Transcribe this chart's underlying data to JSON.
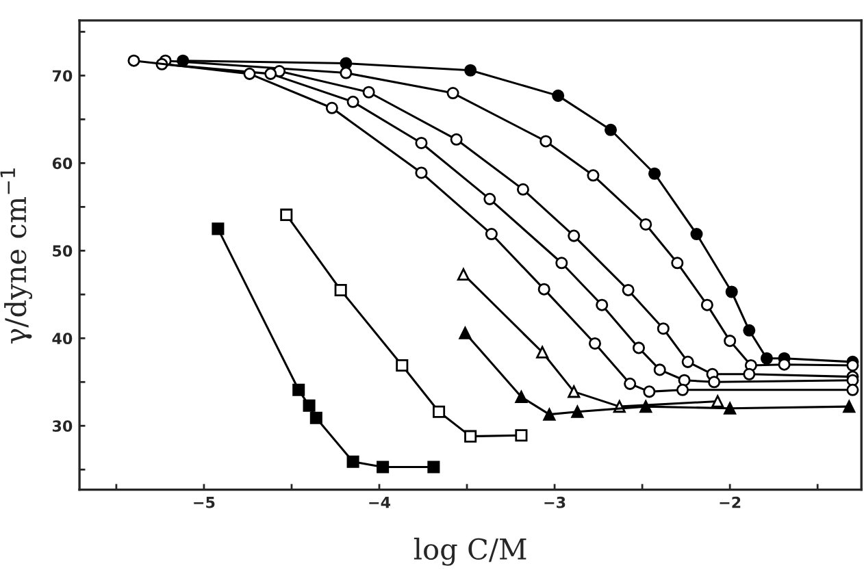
{
  "chart_data": {
    "type": "line",
    "xlabel": "log C/M",
    "ylabel": "γ/dyne cm$^{−1}$",
    "xlim": [
      -5.71,
      -1.25
    ],
    "ylim": [
      22.7,
      76.3
    ],
    "xticks": [
      {
        "value": -5.5,
        "label": null
      },
      {
        "value": -5,
        "label": "−5"
      },
      {
        "value": -4.5,
        "label": null
      },
      {
        "value": -4,
        "label": "−4"
      },
      {
        "value": -3.5,
        "label": null
      },
      {
        "value": -3,
        "label": "−3"
      },
      {
        "value": -2.5,
        "label": null
      },
      {
        "value": -2,
        "label": "−2"
      },
      {
        "value": -1.5,
        "label": null
      }
    ],
    "yticks": [
      {
        "value": 25,
        "label": null
      },
      30,
      {
        "value": 35,
        "label": null
      },
      40,
      {
        "value": 45,
        "label": null
      },
      50,
      {
        "value": 55,
        "label": null
      },
      60,
      {
        "value": 65,
        "label": null
      },
      70,
      {
        "value": 75,
        "label": null
      }
    ],
    "grid": false,
    "legend": false,
    "line_style": "solid",
    "series": [
      {
        "color": "#000000",
        "marker": "circle",
        "x": [
          -5.12,
          -4.19,
          -3.48,
          -2.98,
          -2.68,
          -2.43,
          -2.19,
          -1.99,
          -1.89,
          -1.79,
          -1.69,
          -1.3
        ],
        "values": [
          71.7,
          71.4,
          70.6,
          67.7,
          63.8,
          58.8,
          51.9,
          45.3,
          40.9,
          37.7,
          37.7,
          37.3
        ]
      },
      {
        "color": "#ffffff",
        "marker": "circle",
        "x": [
          -5.22,
          -4.19,
          -3.58,
          -3.05,
          -2.78,
          -2.48,
          -2.3,
          -2.13,
          -2.0,
          -1.88,
          -1.69,
          -1.3
        ],
        "values": [
          71.7,
          70.3,
          68.0,
          62.5,
          58.6,
          53.0,
          48.6,
          43.8,
          39.7,
          36.9,
          37.0,
          36.9
        ]
      },
      {
        "color": "#ffffff",
        "marker": "circle",
        "x": [
          -4.57,
          -4.06,
          -3.56,
          -3.18,
          -2.89,
          -2.58,
          -2.38,
          -2.24,
          -2.1,
          -1.89,
          -1.3
        ],
        "values": [
          70.5,
          68.1,
          62.7,
          57.0,
          51.7,
          45.5,
          41.1,
          37.3,
          35.9,
          35.9,
          35.6
        ]
      },
      {
        "color": "#ffffff",
        "marker": "circle",
        "x": [
          -5.24,
          -4.62,
          -4.15,
          -3.76,
          -3.37,
          -2.96,
          -2.73,
          -2.52,
          -2.4,
          -2.26,
          -2.09,
          -1.3
        ],
        "values": [
          71.3,
          70.2,
          67.0,
          62.3,
          55.9,
          48.6,
          43.8,
          38.9,
          36.4,
          35.2,
          35.0,
          35.2
        ]
      },
      {
        "color": "#ffffff",
        "marker": "circle",
        "x": [
          -5.4,
          -4.74,
          -4.27,
          -3.76,
          -3.36,
          -3.06,
          -2.77,
          -2.57,
          -2.46,
          -2.27,
          -1.3
        ],
        "values": [
          71.7,
          70.2,
          66.3,
          58.9,
          51.9,
          45.6,
          39.4,
          34.8,
          33.9,
          34.1,
          34.1
        ]
      },
      {
        "color": "#ffffff",
        "marker": "triangle",
        "x": [
          -3.52,
          -3.07,
          -2.89,
          -2.63,
          -2.07
        ],
        "values": [
          47.3,
          38.4,
          33.9,
          32.2,
          32.8
        ]
      },
      {
        "color": "#000000",
        "marker": "triangle",
        "x": [
          -3.51,
          -3.19,
          -3.03,
          -2.87,
          -2.48,
          -2.0,
          -1.32
        ],
        "values": [
          40.6,
          33.3,
          31.3,
          31.6,
          32.2,
          32.0,
          32.2
        ]
      },
      {
        "color": "#ffffff",
        "marker": "square",
        "x": [
          -4.53,
          -4.22,
          -3.87,
          -3.66,
          -3.48,
          -3.19
        ],
        "values": [
          54.1,
          45.5,
          36.9,
          31.6,
          28.8,
          28.9
        ]
      },
      {
        "color": "#000000",
        "marker": "square",
        "x": [
          -4.92,
          -4.46,
          -4.4,
          -4.36,
          -4.15,
          -3.98,
          -3.69
        ],
        "values": [
          52.5,
          34.1,
          32.3,
          30.9,
          25.9,
          25.3,
          25.3
        ]
      }
    ]
  }
}
